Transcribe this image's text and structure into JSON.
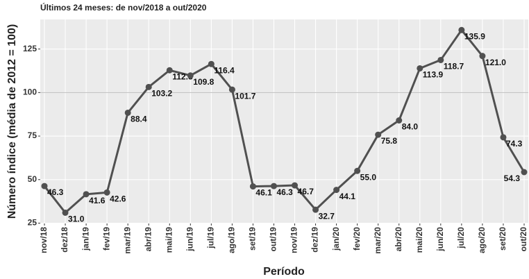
{
  "chart_data": {
    "type": "line",
    "subtitle": "Últimos 24 meses: de nov/2018 a out/2020",
    "y_label": "Número índice (média de 2012 = 100)",
    "x_label": "Período",
    "categories": [
      "nov/18",
      "dez/18",
      "jan/19",
      "fev/19",
      "mar/19",
      "abr/19",
      "mai/19",
      "jun/19",
      "jul/19",
      "ago/19",
      "set/19",
      "out/19",
      "nov/19",
      "dez/19",
      "jan/20",
      "fev/20",
      "mar/20",
      "abr/20",
      "mai/20",
      "jun/20",
      "jul/20",
      "ago/20",
      "set/20",
      "out/20"
    ],
    "values": [
      46.3,
      31.0,
      41.6,
      42.6,
      88.4,
      103.2,
      112.8,
      109.8,
      116.4,
      101.7,
      46.1,
      46.3,
      46.7,
      32.7,
      44.1,
      55.0,
      75.8,
      84.0,
      113.9,
      118.7,
      135.9,
      121.0,
      74.3,
      54.3
    ],
    "value_labels": [
      "46.3",
      "31.0",
      "41.6",
      "42.6",
      "88.4",
      "103.2",
      "112.8",
      "109.8",
      "116.4",
      "101.7",
      "46.1",
      "46.3",
      "46.7",
      "32.7",
      "44.1",
      "55.0",
      "75.8",
      "84.0",
      "113.9",
      "118.7",
      "135.9",
      "121.0",
      "74.3",
      "54.3"
    ],
    "color": "#505050",
    "reference_line": 100,
    "ylim": [
      24.8,
      142
    ],
    "yticks": [
      25,
      50,
      75,
      100,
      125
    ],
    "grid": true
  }
}
